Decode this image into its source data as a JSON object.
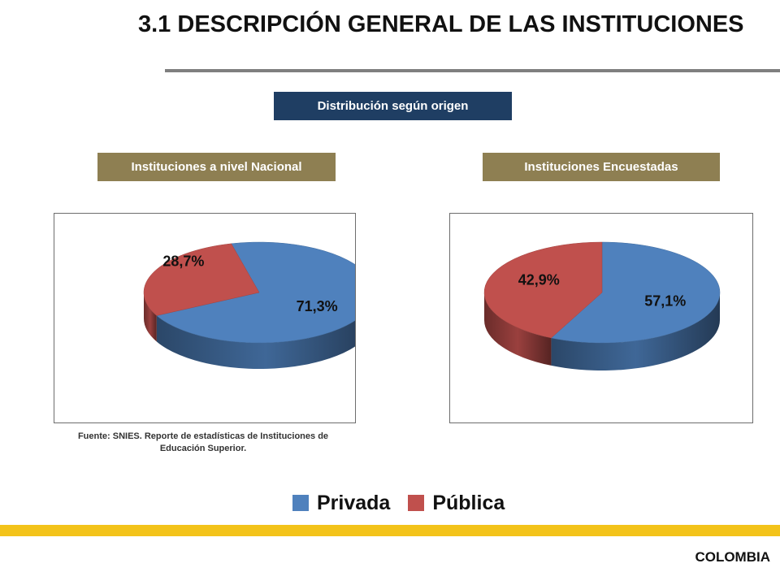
{
  "title": "3.1 DESCRIPCIÓN GENERAL DE LAS INSTITUCIONES",
  "section_label": "Distribución según origen",
  "colors": {
    "privada": "#4f81bd",
    "publica": "#c0504d",
    "navy_box": "#1f3e63",
    "olive_box": "#8e7f52",
    "footer_bar": "#f3c31a"
  },
  "chart_data": [
    {
      "type": "pie",
      "title": "Instituciones a nivel Nacional",
      "categories": [
        "Privada",
        "Pública"
      ],
      "values": [
        71.3,
        28.7
      ],
      "labels": [
        "71,3%",
        "28,7%"
      ]
    },
    {
      "type": "pie",
      "title": "Instituciones Encuestadas",
      "categories": [
        "Privada",
        "Pública"
      ],
      "values": [
        57.1,
        42.9
      ],
      "labels": [
        "57,1%",
        "42,9%"
      ]
    }
  ],
  "source_line1": "Fuente: SNIES. Reporte de estadísticas de Instituciones de",
  "source_line2": "Educación Superior.",
  "legend": [
    {
      "label": "Privada",
      "color": "#4f81bd"
    },
    {
      "label": "Pública",
      "color": "#c0504d"
    }
  ],
  "footer": "COLOMBIA"
}
